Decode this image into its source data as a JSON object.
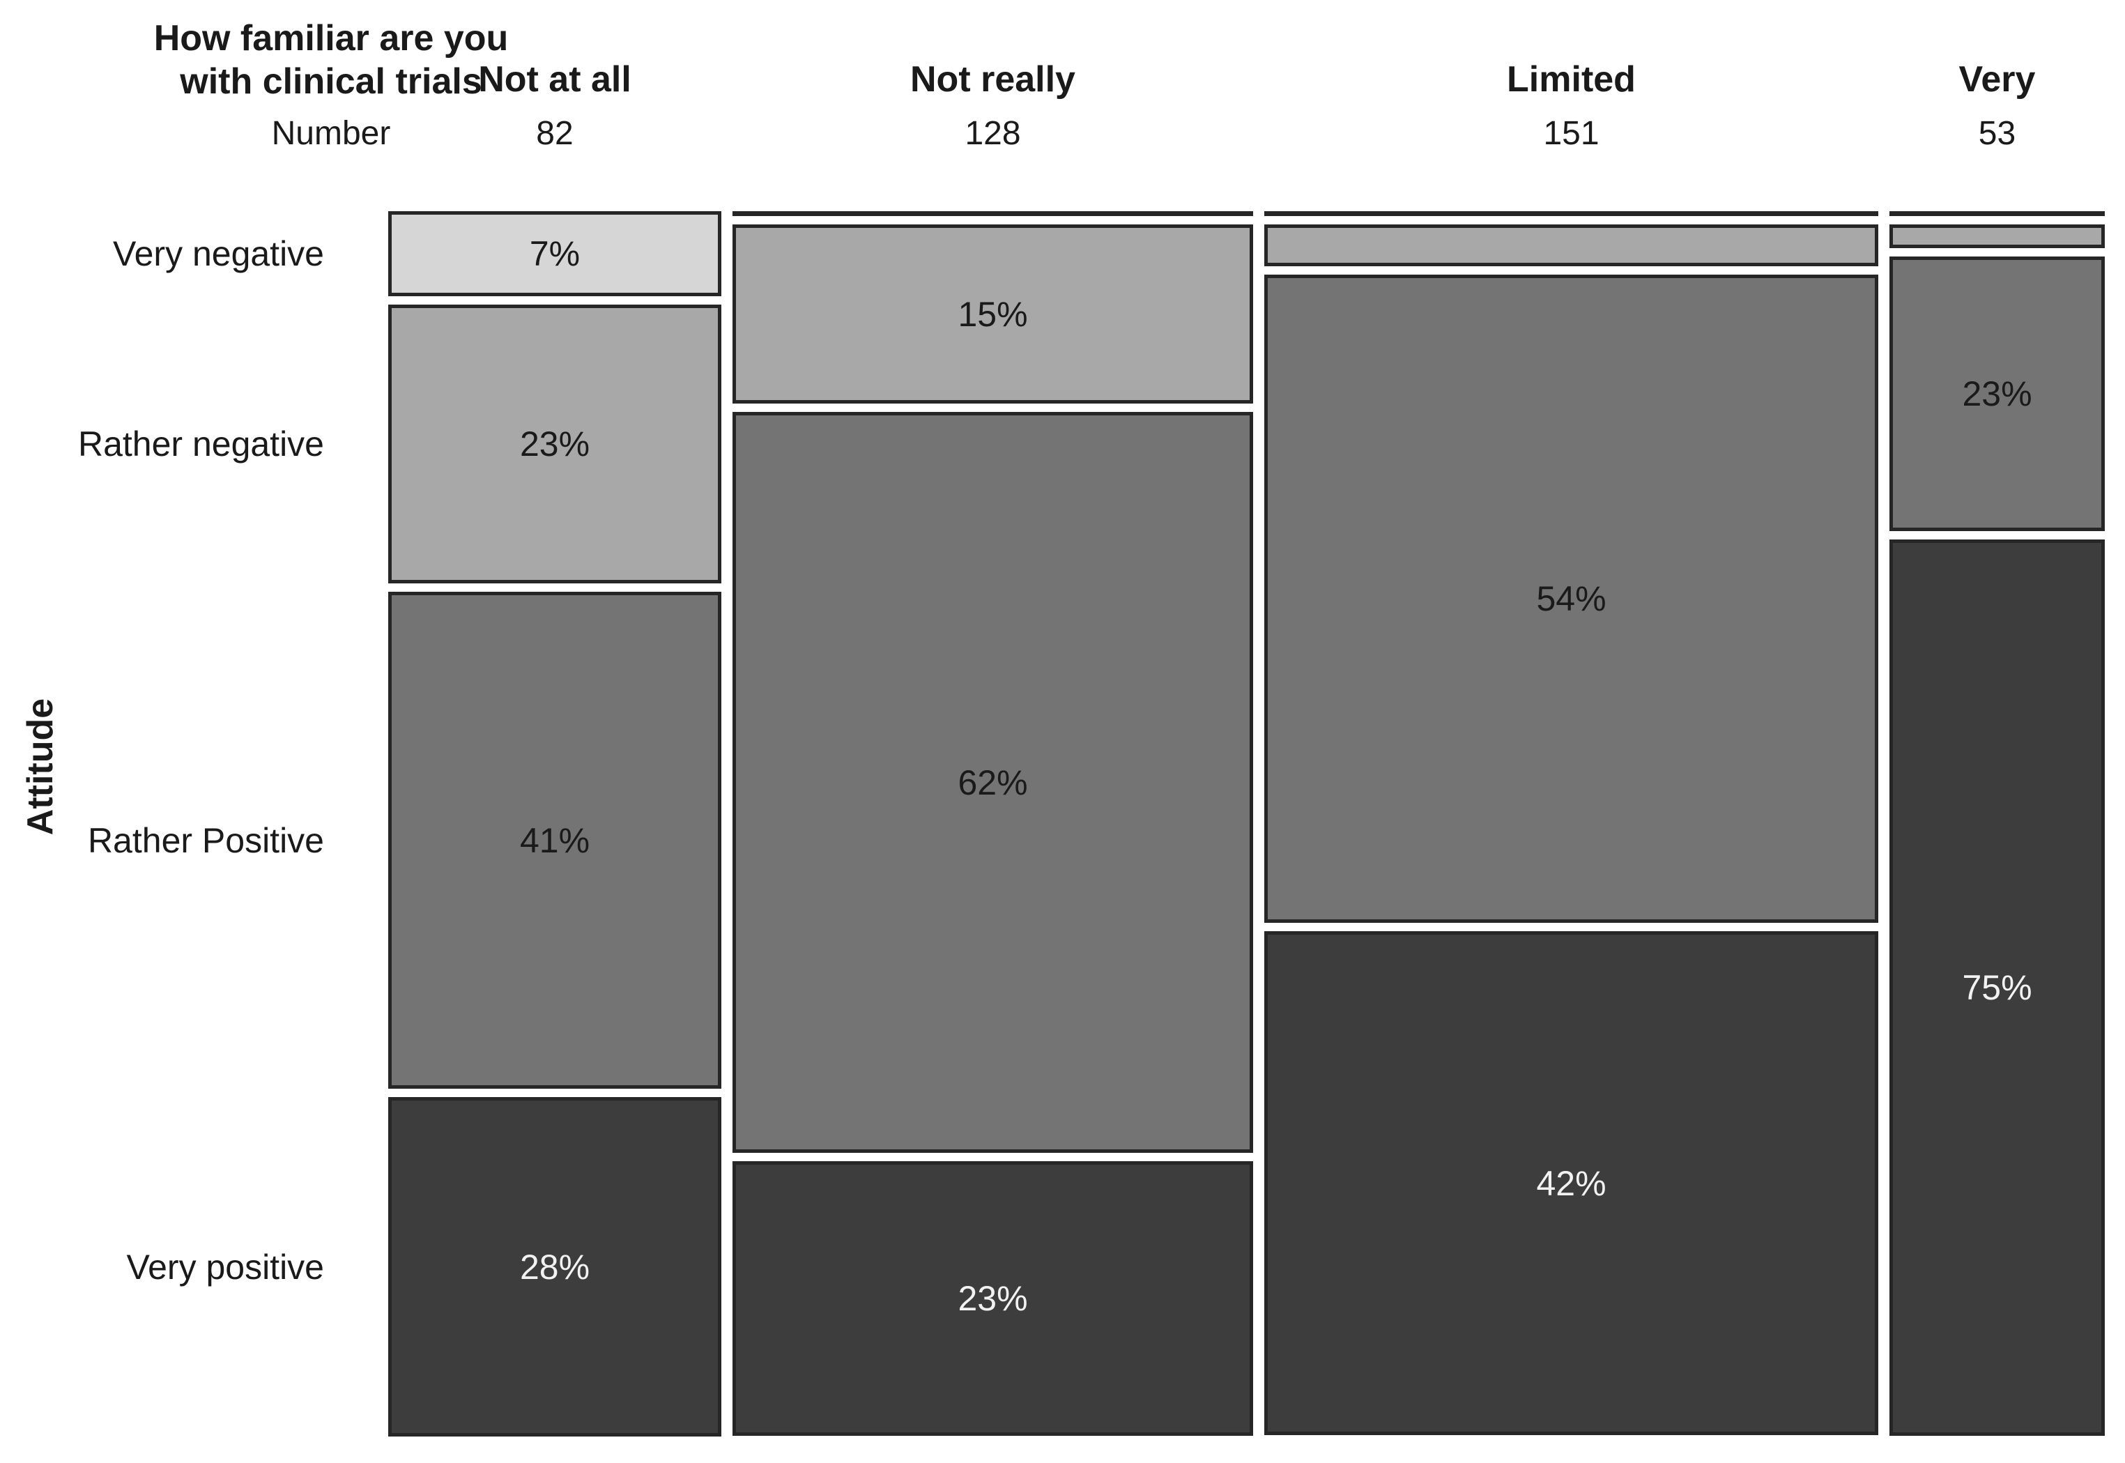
{
  "header": {
    "title_line1": "How familiar are you",
    "title_line2": "with clinical trials",
    "count_row_label": "Number"
  },
  "chart_data": {
    "type": "mosaic",
    "title": "How familiar are you with clinical trials",
    "y_axis_label": "Attitude",
    "x_category_totals_label": "Number",
    "x_categories": [
      "Not at all",
      "Not really",
      "Limited",
      "Very"
    ],
    "x_counts": [
      82,
      128,
      151,
      53
    ],
    "y_categories": [
      "Very negative",
      "Rather negative",
      "Rather Positive",
      "Very positive"
    ],
    "legend_position": "none",
    "grid": false,
    "columns": [
      {
        "label": "Not at all",
        "n": 82,
        "segments": [
          {
            "attitude": "Very negative",
            "pct": 7,
            "label": "7%"
          },
          {
            "attitude": "Rather negative",
            "pct": 23,
            "label": "23%"
          },
          {
            "attitude": "Rather Positive",
            "pct": 41,
            "label": "41%"
          },
          {
            "attitude": "Very positive",
            "pct": 28,
            "label": "28%"
          }
        ]
      },
      {
        "label": "Not really",
        "n": 128,
        "segments": [
          {
            "attitude": "Very negative",
            "pct": 0,
            "label": ""
          },
          {
            "attitude": "Rather negative",
            "pct": 15,
            "label": "15%"
          },
          {
            "attitude": "Rather Positive",
            "pct": 62,
            "label": "62%"
          },
          {
            "attitude": "Very positive",
            "pct": 23,
            "label": "23%"
          }
        ]
      },
      {
        "label": "Limited",
        "n": 151,
        "segments": [
          {
            "attitude": "Very negative",
            "pct": 0,
            "label": ""
          },
          {
            "attitude": "Rather negative",
            "pct": 3.5,
            "label": ""
          },
          {
            "attitude": "Rather Positive",
            "pct": 54,
            "label": "54%"
          },
          {
            "attitude": "Very positive",
            "pct": 42,
            "label": "42%"
          }
        ]
      },
      {
        "label": "Very",
        "n": 53,
        "segments": [
          {
            "attitude": "Very negative",
            "pct": 0,
            "label": ""
          },
          {
            "attitude": "Rather negative",
            "pct": 2,
            "label": ""
          },
          {
            "attitude": "Rather Positive",
            "pct": 23,
            "label": "23%"
          },
          {
            "attitude": "Very positive",
            "pct": 75,
            "label": "75%"
          }
        ]
      }
    ],
    "colors": {
      "Very negative": {
        "fill": "#d6d6d6",
        "text": "#1a1a1a"
      },
      "Rather negative": {
        "fill": "#a8a8a8",
        "text": "#1a1a1a"
      },
      "Rather Positive": {
        "fill": "#747474",
        "text": "#1a1a1a"
      },
      "Very positive": {
        "fill": "#3d3d3d",
        "text": "#f2f2f2"
      },
      "border": "#262626",
      "background": "#ffffff"
    }
  }
}
